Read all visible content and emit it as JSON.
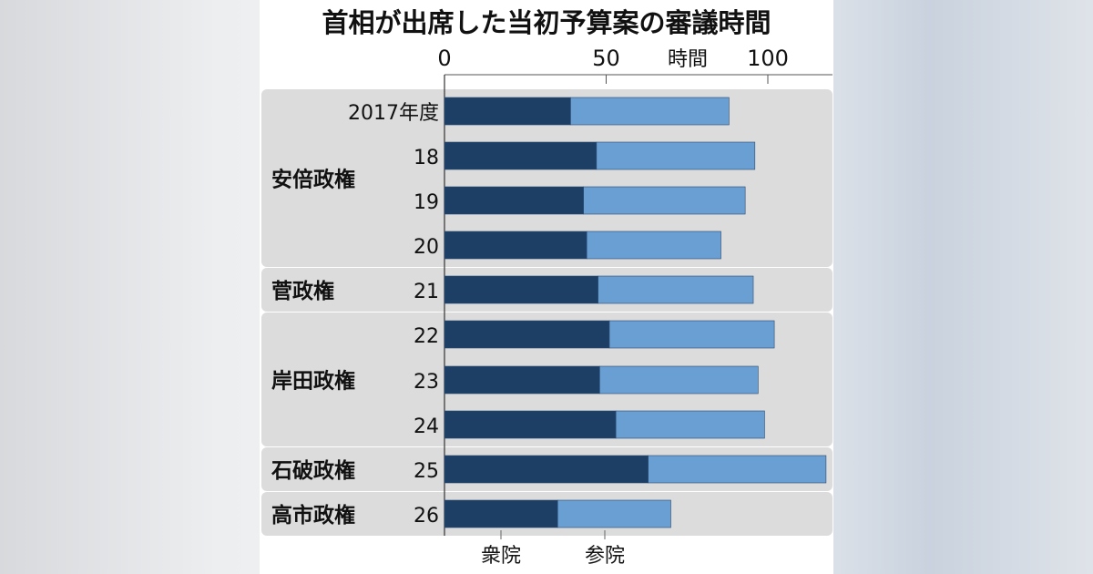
{
  "chart_data": {
    "type": "bar",
    "stacked": true,
    "orientation": "horizontal",
    "title": "首相が出席した当初予算案の審議時間",
    "xlabel": "時間",
    "xlim": [
      0,
      120
    ],
    "xticks": [
      0,
      50,
      100
    ],
    "categories": [
      "2017年度",
      "18",
      "19",
      "20",
      "21",
      "22",
      "23",
      "24",
      "25",
      "26"
    ],
    "groups": [
      {
        "name": "安倍政権",
        "categories": [
          "2017年度",
          "18",
          "19",
          "20"
        ]
      },
      {
        "name": "菅政権",
        "categories": [
          "21"
        ]
      },
      {
        "name": "岸田政権",
        "categories": [
          "22",
          "23",
          "24"
        ]
      },
      {
        "name": "石破政権",
        "categories": [
          "25"
        ]
      },
      {
        "name": "高市政権",
        "categories": [
          "26"
        ]
      }
    ],
    "series": [
      {
        "name": "衆院",
        "color": "#1d3f66",
        "values": [
          39,
          47,
          43,
          44,
          47.5,
          51,
          48,
          53,
          63,
          35
        ]
      },
      {
        "name": "参院",
        "color": "#6a9fd3",
        "values": [
          49,
          49,
          50,
          41.5,
          48,
          51,
          49,
          46,
          55,
          35
        ]
      }
    ],
    "legend": "bottom"
  }
}
